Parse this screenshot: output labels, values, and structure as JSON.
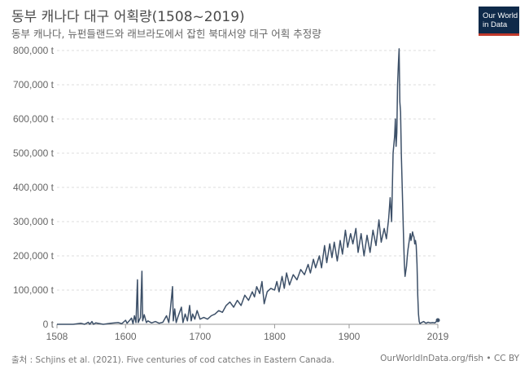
{
  "header": {
    "title": "동부 캐나다 대구 어획량(1508~2019)",
    "subtitle": "동부 캐나다, 뉴펀들랜드와 래브라도에서 잡힌 북대서양 대구 어획 추정량"
  },
  "logo": {
    "line1": "Our World",
    "line2": "in Data"
  },
  "footer": {
    "source": "출처 : Schjins et al. (2021). Five centuries of cod catches in Eastern Canada.",
    "credit": "OurWorldInData.org/fish • CC BY"
  },
  "colors": {
    "line": "#3d5068",
    "grid": "#dddddd",
    "axis": "#666666"
  },
  "chart_data": {
    "type": "line",
    "title": "동부 캐나다 대구 어획량(1508~2019)",
    "xlim": [
      1508,
      2019
    ],
    "ylim": [
      0,
      800000
    ],
    "x_ticks": [
      "1508",
      "1600",
      "1700",
      "1800",
      "1900",
      "2019"
    ],
    "y_ticks": [
      "0 t",
      "100,000 t",
      "200,000 t",
      "300,000 t",
      "400,000 t",
      "500,000 t",
      "600,000 t",
      "700,000 t",
      "800,000 t"
    ],
    "grid": "horizontal dashed",
    "series": [
      {
        "name": "",
        "points": [
          [
            1508,
            0
          ],
          [
            1530,
            0
          ],
          [
            1540,
            3000
          ],
          [
            1545,
            0
          ],
          [
            1550,
            6000
          ],
          [
            1552,
            0
          ],
          [
            1555,
            8000
          ],
          [
            1557,
            0
          ],
          [
            1560,
            4000
          ],
          [
            1570,
            0
          ],
          [
            1580,
            3000
          ],
          [
            1590,
            5000
          ],
          [
            1595,
            2000
          ],
          [
            1600,
            12000
          ],
          [
            1602,
            3000
          ],
          [
            1605,
            10000
          ],
          [
            1608,
            18000
          ],
          [
            1610,
            2000
          ],
          [
            1612,
            25000
          ],
          [
            1614,
            5000
          ],
          [
            1616,
            130000
          ],
          [
            1617,
            5000
          ],
          [
            1620,
            20000
          ],
          [
            1622,
            155000
          ],
          [
            1623,
            10000
          ],
          [
            1625,
            28000
          ],
          [
            1628,
            5000
          ],
          [
            1630,
            10000
          ],
          [
            1635,
            4000
          ],
          [
            1640,
            8000
          ],
          [
            1645,
            3000
          ],
          [
            1650,
            6000
          ],
          [
            1655,
            25000
          ],
          [
            1658,
            5000
          ],
          [
            1660,
            40000
          ],
          [
            1663,
            110000
          ],
          [
            1664,
            10000
          ],
          [
            1666,
            45000
          ],
          [
            1668,
            5000
          ],
          [
            1670,
            20000
          ],
          [
            1675,
            50000
          ],
          [
            1677,
            5000
          ],
          [
            1680,
            30000
          ],
          [
            1683,
            10000
          ],
          [
            1686,
            55000
          ],
          [
            1688,
            10000
          ],
          [
            1690,
            30000
          ],
          [
            1693,
            15000
          ],
          [
            1696,
            40000
          ],
          [
            1700,
            15000
          ],
          [
            1705,
            20000
          ],
          [
            1710,
            15000
          ],
          [
            1715,
            25000
          ],
          [
            1720,
            30000
          ],
          [
            1725,
            40000
          ],
          [
            1730,
            35000
          ],
          [
            1735,
            55000
          ],
          [
            1740,
            65000
          ],
          [
            1745,
            50000
          ],
          [
            1750,
            70000
          ],
          [
            1755,
            55000
          ],
          [
            1760,
            85000
          ],
          [
            1765,
            70000
          ],
          [
            1770,
            95000
          ],
          [
            1773,
            80000
          ],
          [
            1776,
            110000
          ],
          [
            1780,
            90000
          ],
          [
            1783,
            125000
          ],
          [
            1786,
            60000
          ],
          [
            1790,
            95000
          ],
          [
            1795,
            105000
          ],
          [
            1800,
            100000
          ],
          [
            1803,
            125000
          ],
          [
            1806,
            95000
          ],
          [
            1810,
            140000
          ],
          [
            1813,
            105000
          ],
          [
            1816,
            150000
          ],
          [
            1820,
            115000
          ],
          [
            1825,
            145000
          ],
          [
            1830,
            130000
          ],
          [
            1835,
            160000
          ],
          [
            1840,
            145000
          ],
          [
            1845,
            175000
          ],
          [
            1848,
            150000
          ],
          [
            1852,
            190000
          ],
          [
            1855,
            165000
          ],
          [
            1860,
            200000
          ],
          [
            1863,
            165000
          ],
          [
            1867,
            230000
          ],
          [
            1870,
            180000
          ],
          [
            1874,
            235000
          ],
          [
            1877,
            195000
          ],
          [
            1880,
            240000
          ],
          [
            1884,
            185000
          ],
          [
            1888,
            245000
          ],
          [
            1891,
            205000
          ],
          [
            1895,
            275000
          ],
          [
            1898,
            225000
          ],
          [
            1902,
            265000
          ],
          [
            1905,
            235000
          ],
          [
            1909,
            280000
          ],
          [
            1912,
            210000
          ],
          [
            1916,
            265000
          ],
          [
            1920,
            200000
          ],
          [
            1924,
            260000
          ],
          [
            1928,
            210000
          ],
          [
            1932,
            275000
          ],
          [
            1936,
            230000
          ],
          [
            1940,
            305000
          ],
          [
            1943,
            240000
          ],
          [
            1947,
            280000
          ],
          [
            1950,
            250000
          ],
          [
            1953,
            310000
          ],
          [
            1955,
            370000
          ],
          [
            1957,
            300000
          ],
          [
            1959,
            500000
          ],
          [
            1961,
            550000
          ],
          [
            1962,
            600000
          ],
          [
            1963,
            520000
          ],
          [
            1964,
            560000
          ],
          [
            1965,
            700000
          ],
          [
            1966,
            760000
          ],
          [
            1967,
            805000
          ],
          [
            1968,
            650000
          ],
          [
            1969,
            620000
          ],
          [
            1970,
            500000
          ],
          [
            1971,
            420000
          ],
          [
            1972,
            330000
          ],
          [
            1973,
            250000
          ],
          [
            1974,
            180000
          ],
          [
            1975,
            140000
          ],
          [
            1976,
            155000
          ],
          [
            1977,
            170000
          ],
          [
            1978,
            200000
          ],
          [
            1979,
            220000
          ],
          [
            1980,
            235000
          ],
          [
            1981,
            250000
          ],
          [
            1982,
            265000
          ],
          [
            1983,
            245000
          ],
          [
            1984,
            255000
          ],
          [
            1985,
            270000
          ],
          [
            1986,
            260000
          ],
          [
            1987,
            255000
          ],
          [
            1988,
            235000
          ],
          [
            1989,
            245000
          ],
          [
            1990,
            230000
          ],
          [
            1991,
            175000
          ],
          [
            1992,
            85000
          ],
          [
            1993,
            30000
          ],
          [
            1994,
            8000
          ],
          [
            1995,
            2000
          ],
          [
            1997,
            5000
          ],
          [
            2000,
            8000
          ],
          [
            2003,
            3000
          ],
          [
            2006,
            6000
          ],
          [
            2009,
            4000
          ],
          [
            2012,
            5000
          ],
          [
            2015,
            4000
          ],
          [
            2017,
            8000
          ],
          [
            2019,
            12000
          ]
        ]
      }
    ]
  }
}
